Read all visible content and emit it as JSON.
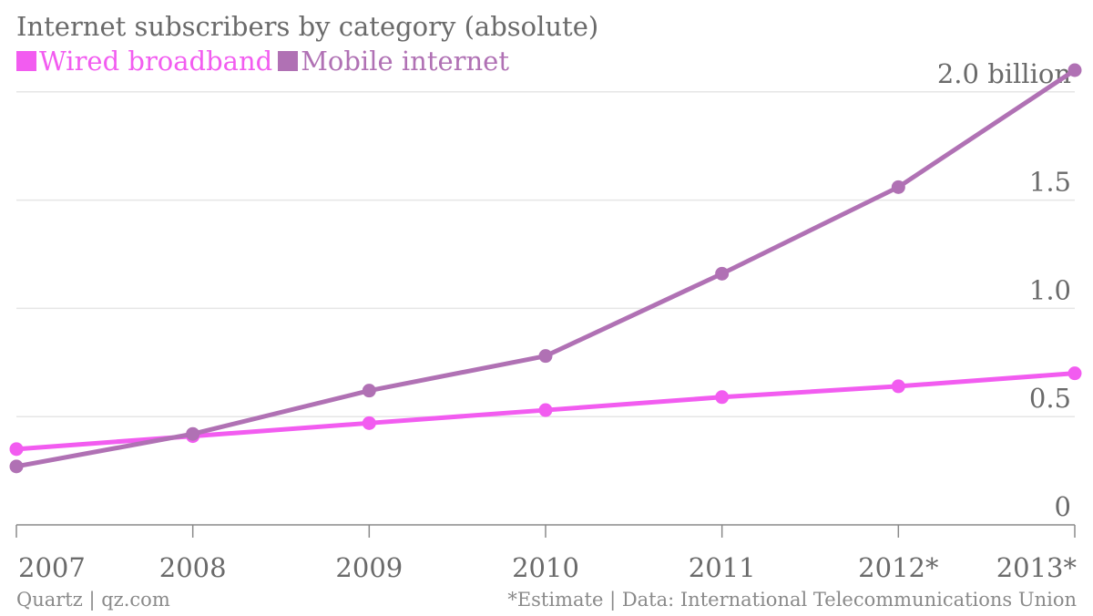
{
  "chart_data": {
    "type": "line",
    "title": "Internet subscribers by category (absolute)",
    "categories": [
      "2007",
      "2008",
      "2009",
      "2010",
      "2011",
      "2012*",
      "2013*"
    ],
    "series": [
      {
        "name": "Wired broadband",
        "color": "#f25cf0",
        "values": [
          0.35,
          0.41,
          0.47,
          0.53,
          0.59,
          0.64,
          0.7
        ]
      },
      {
        "name": "Mobile internet",
        "color": "#b071b4",
        "values": [
          0.27,
          0.42,
          0.62,
          0.78,
          1.16,
          1.56,
          2.1
        ]
      }
    ],
    "y_ticks": [
      {
        "value": 0,
        "label": "0"
      },
      {
        "value": 0.5,
        "label": "0.5"
      },
      {
        "value": 1.0,
        "label": "1.0"
      },
      {
        "value": 1.5,
        "label": "1.5"
      },
      {
        "value": 2.0,
        "label": "2.0 billion"
      }
    ],
    "ylim": [
      0,
      2.1
    ],
    "grid": true,
    "legend_position": "top-left",
    "xlabel": "",
    "ylabel": ""
  },
  "footer": {
    "source_left": "Quartz | qz.com",
    "source_right": "*Estimate | Data: International Telecommunications Union"
  }
}
